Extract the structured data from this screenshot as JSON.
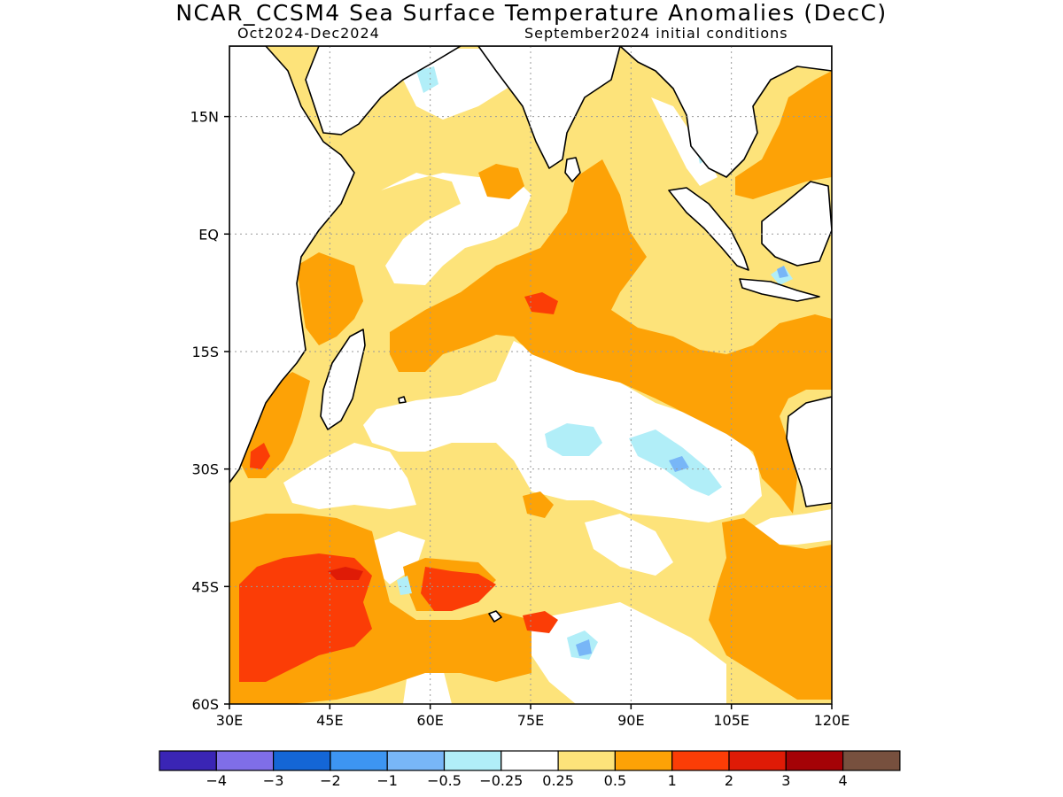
{
  "header": {
    "title": "NCAR_CCSM4 Sea Surface Temperature Anomalies (DecC)",
    "subtitle_left": "Oct2024-Dec2024",
    "subtitle_right": "September2024 initial conditions"
  },
  "map": {
    "lon_range": [
      30,
      120
    ],
    "lat_range": [
      -60,
      24
    ],
    "lat_ticks": [
      {
        "label": "15N",
        "value": 15
      },
      {
        "label": "EQ",
        "value": 0
      },
      {
        "label": "15S",
        "value": -15
      },
      {
        "label": "30S",
        "value": -30
      },
      {
        "label": "45S",
        "value": -45
      },
      {
        "label": "60S",
        "value": -60
      }
    ],
    "lon_ticks": [
      {
        "label": "30E",
        "value": 30
      },
      {
        "label": "45E",
        "value": 45
      },
      {
        "label": "60E",
        "value": 60
      },
      {
        "label": "75E",
        "value": 75
      },
      {
        "label": "90E",
        "value": 90
      },
      {
        "label": "105E",
        "value": 105
      },
      {
        "label": "120E",
        "value": 120
      }
    ],
    "grid": "dotted"
  },
  "colorbar": {
    "colors": [
      "#3a25b5",
      "#7f6ee8",
      "#1466d6",
      "#3d95f2",
      "#78b6f7",
      "#b1eef8",
      "#ffffff",
      "#fde37a",
      "#fda206",
      "#fb3d06",
      "#df1b06",
      "#a40206",
      "#77503e"
    ],
    "labels": [
      "−4",
      "−3",
      "−2",
      "−1",
      "−0.5",
      "−0.25",
      "0.25",
      "0.5",
      "1",
      "2",
      "3",
      "4"
    ]
  },
  "colors": {
    "land": "#ffffff",
    "ocean_base": "#fde37a"
  }
}
